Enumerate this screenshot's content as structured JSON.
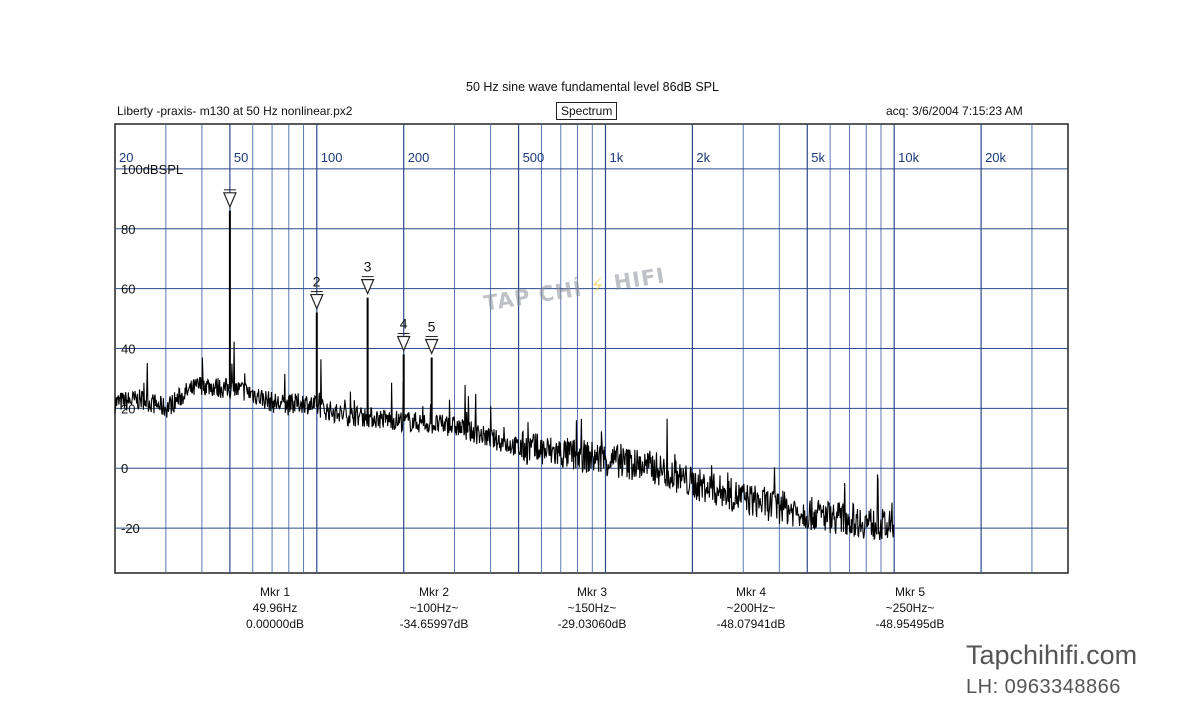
{
  "header": {
    "title": "50 Hz sine wave fundamental level 86dB SPL",
    "file": "Liberty -praxis-  m130 at 50 Hz nonlinear.px2",
    "view": "Spectrum",
    "acq": "acq: 3/6/2004 7:15:23 AM"
  },
  "chart_data": {
    "type": "line",
    "title": "50 Hz sine wave fundamental level 86dB SPL",
    "x_scale": "log",
    "xlim": [
      20,
      40000
    ],
    "ylim": [
      -35,
      115
    ],
    "x_tick_labels": [
      {
        "value": 20,
        "label": "20"
      },
      {
        "value": 50,
        "label": "50"
      },
      {
        "value": 100,
        "label": "100"
      },
      {
        "value": 200,
        "label": "200"
      },
      {
        "value": 500,
        "label": "500"
      },
      {
        "value": 1000,
        "label": "1k"
      },
      {
        "value": 2000,
        "label": "2k"
      },
      {
        "value": 5000,
        "label": "5k"
      },
      {
        "value": 10000,
        "label": "10k"
      },
      {
        "value": 20000,
        "label": "20k"
      }
    ],
    "y_tick_labels": [
      {
        "value": 100,
        "label": "100dBSPL"
      },
      {
        "value": 80,
        "label": "80"
      },
      {
        "value": 60,
        "label": "60"
      },
      {
        "value": 40,
        "label": "40"
      },
      {
        "value": 20,
        "label": "20"
      },
      {
        "value": 0,
        "label": "0"
      },
      {
        "value": -20,
        "label": "-20"
      }
    ],
    "grid": true,
    "markers": [
      {
        "label": "",
        "freq": 50,
        "level": 86
      },
      {
        "label": "2",
        "freq": 100,
        "level": 52
      },
      {
        "label": "3",
        "freq": 150,
        "level": 57
      },
      {
        "label": "4",
        "freq": 200,
        "level": 38
      },
      {
        "label": "5",
        "freq": 250,
        "level": 37
      }
    ],
    "series": [
      {
        "x": [
          20,
          25,
          30,
          35,
          40,
          45,
          50,
          55,
          60,
          70,
          80,
          90,
          100,
          120,
          150,
          200,
          250,
          300,
          400,
          500,
          700,
          1000,
          1500,
          2000,
          3000,
          4000,
          5000,
          7000,
          10000
        ],
        "y": [
          22,
          23,
          20,
          25,
          28,
          27,
          86,
          26,
          25,
          22,
          21,
          22,
          52,
          18,
          57,
          38,
          37,
          14,
          10,
          7,
          5,
          3,
          0,
          -5,
          -10,
          -13,
          -15,
          -17,
          -20
        ]
      }
    ]
  },
  "markers_readout": [
    {
      "name": "Mkr 1",
      "freq": "49.96Hz",
      "level": "0.00000dB"
    },
    {
      "name": "Mkr 2",
      "freq": "~100Hz~",
      "level": "-34.65997dB"
    },
    {
      "name": "Mkr 3",
      "freq": "~150Hz~",
      "level": "-29.03060dB"
    },
    {
      "name": "Mkr 4",
      "freq": "~200Hz~",
      "level": "-48.07941dB"
    },
    {
      "name": "Mkr 5",
      "freq": "~250Hz~",
      "level": "-48.95495dB"
    }
  ],
  "watermark": {
    "text_left": "TAP CHÍ",
    "bolt": "⚡",
    "text_right": "HIFI"
  },
  "brand": {
    "site": "Tapchihifi.com",
    "phone": "LH: 0963348866"
  },
  "colors": {
    "grid_major": "#2a4a8a",
    "grid_minor": "#4a6aa8",
    "trace": "#000000",
    "tick_label": "#1a3a7a"
  }
}
